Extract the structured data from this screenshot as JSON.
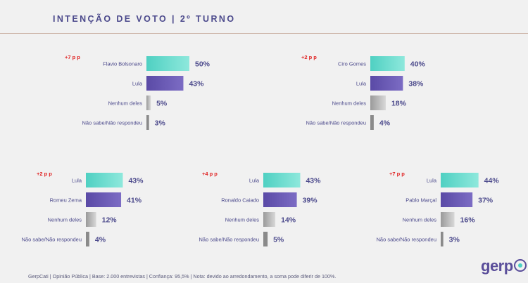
{
  "header": {
    "title": "INTENÇÃO DE VOTO | 2º TURNO"
  },
  "footer": {
    "note": "GerpCati | Opinião Pública | Base: 2.000 entrevistas | Confiança: 95,5% | Nota: devido ao arredondamento, a soma pode diferir de 100%."
  },
  "logo": {
    "text": "gerp"
  },
  "colors": {
    "leader": "#5dd8c8",
    "second": "#6456b0",
    "none": "#b8b8b8",
    "unknown": "#8a8a8a",
    "delta": "#e02020",
    "labels": "#4c4a8c"
  },
  "chart_data": [
    {
      "type": "bar",
      "orientation": "horizontal",
      "delta": "+7 p p",
      "categories": [
        "Flavio Bolsonaro",
        "Lula",
        "Nenhum deles",
        "Não sabe/Não respondeu"
      ],
      "values": [
        50,
        43,
        5,
        3
      ],
      "value_labels": [
        "50%",
        "43%",
        "5%",
        "3%"
      ]
    },
    {
      "type": "bar",
      "orientation": "horizontal",
      "delta": "+2 p p",
      "categories": [
        "Ciro Gomes",
        "Lula",
        "Nenhum deles",
        "Não sabe/Não respondeu"
      ],
      "values": [
        40,
        38,
        18,
        4
      ],
      "value_labels": [
        "40%",
        "38%",
        "18%",
        "4%"
      ]
    },
    {
      "type": "bar",
      "orientation": "horizontal",
      "delta": "+2 p p",
      "categories": [
        "Lula",
        "Romeu Zema",
        "Nenhum deles",
        "Não sabe/Não respondeu"
      ],
      "values": [
        43,
        41,
        12,
        4
      ],
      "value_labels": [
        "43%",
        "41%",
        "12%",
        "4%"
      ]
    },
    {
      "type": "bar",
      "orientation": "horizontal",
      "delta": "+4 p p",
      "categories": [
        "Lula",
        "Ronaldo Caiado",
        "Nenhum deles",
        "Não sabe/Não respondeu"
      ],
      "values": [
        43,
        39,
        14,
        5
      ],
      "value_labels": [
        "43%",
        "39%",
        "14%",
        "5%"
      ]
    },
    {
      "type": "bar",
      "orientation": "horizontal",
      "delta": "+7 p p",
      "categories": [
        "Lula",
        "Pablo Marçal",
        "Nenhum deles",
        "Não sabe/Não respondeu"
      ],
      "values": [
        44,
        37,
        16,
        3
      ],
      "value_labels": [
        "44%",
        "37%",
        "16%",
        "3%"
      ]
    }
  ]
}
